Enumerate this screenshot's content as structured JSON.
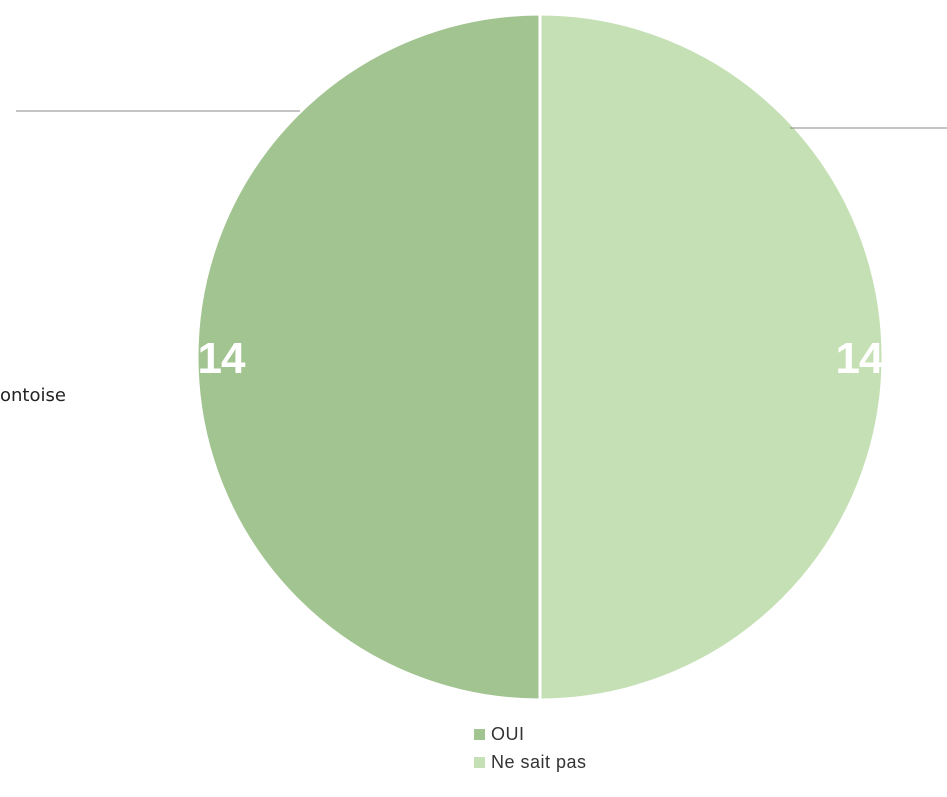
{
  "chart_data": {
    "type": "pie",
    "categories": [
      "OUI",
      "Ne sait pas"
    ],
    "values": [
      14,
      14
    ],
    "colors": [
      "#a2c490",
      "#c5e0b4"
    ],
    "data_labels": [
      "14",
      "14"
    ],
    "legend": {
      "placement": "bottom",
      "entries": [
        "OUI",
        "Ne sait pas"
      ]
    }
  },
  "side_text": "ontoise"
}
